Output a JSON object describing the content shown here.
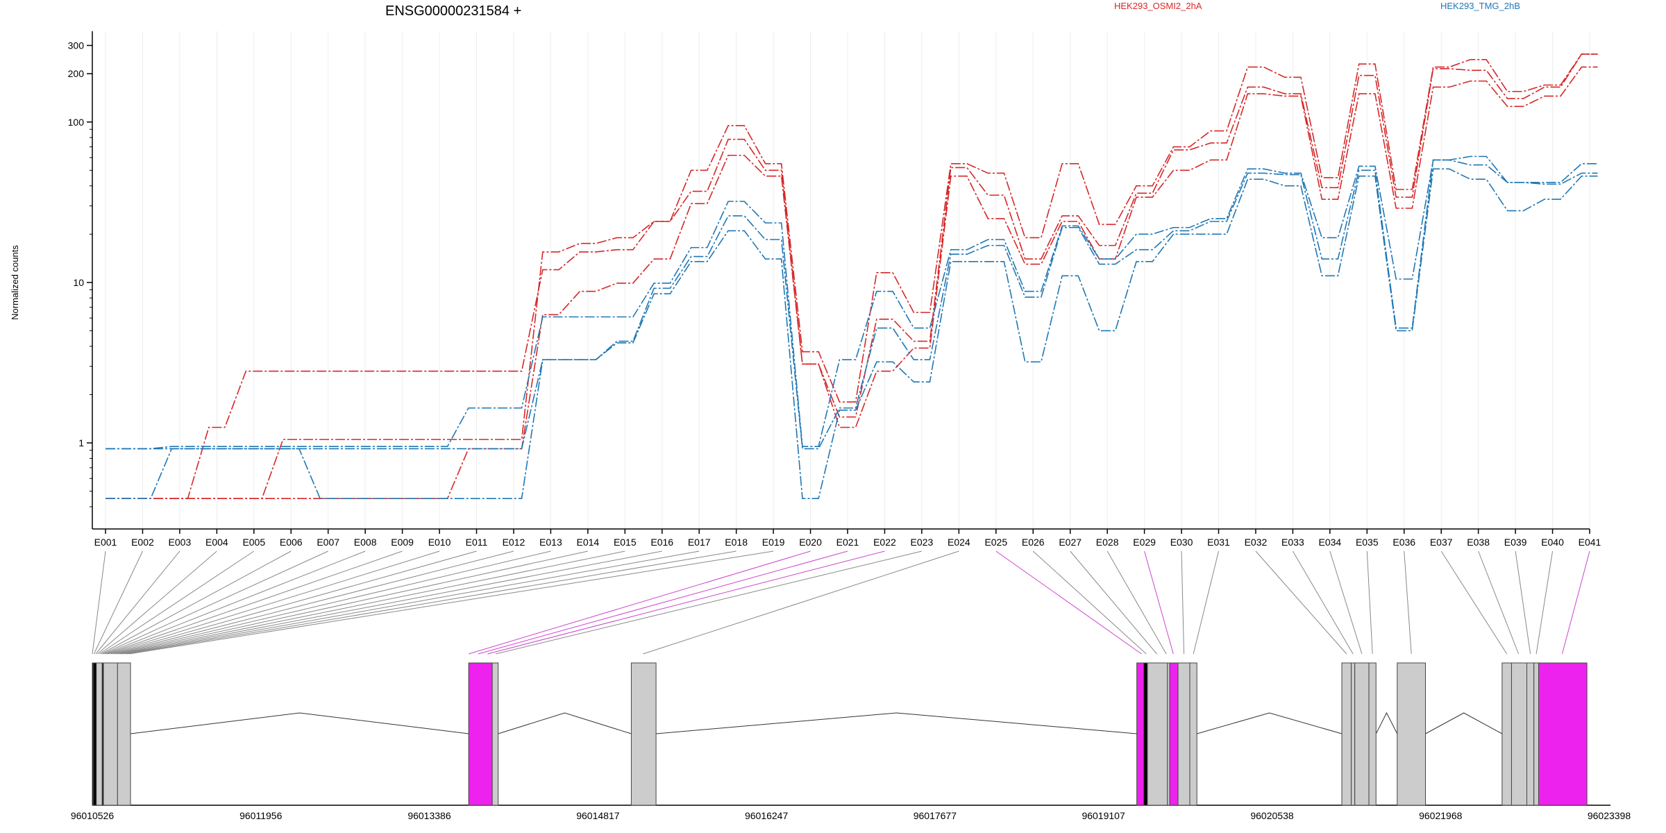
{
  "chart_data": {
    "type": "line",
    "title": "ENSG00000231584 +",
    "ylabel": "Normalized counts",
    "yscale": "log",
    "ylim": [
      0.4,
      350
    ],
    "ytick_labels": [
      "1",
      "10",
      "100",
      "200",
      "300"
    ],
    "ytick_values": [
      1,
      10,
      100,
      200,
      300
    ],
    "x": [
      "E001",
      "E002",
      "E003",
      "E004",
      "E005",
      "E006",
      "E007",
      "E008",
      "E009",
      "E010",
      "E011",
      "E012",
      "E013",
      "E014",
      "E015",
      "E016",
      "E017",
      "E018",
      "E019",
      "E020",
      "E021",
      "E022",
      "E023",
      "E024",
      "E025",
      "E026",
      "E027",
      "E028",
      "E029",
      "E030",
      "E031",
      "E032",
      "E033",
      "E034",
      "E035",
      "E036",
      "E037",
      "E038",
      "E039",
      "E040",
      "E041"
    ],
    "conditions": [
      {
        "name": "HEK293_OSMI2_2hA",
        "color": "#d62728"
      },
      {
        "name": "HEK293_TMG_2hB",
        "color": "#1f77b4"
      }
    ],
    "series": [
      {
        "condition": 0,
        "values": [
          0.45,
          0.45,
          0.45,
          0.45,
          0.45,
          1.05,
          1.05,
          1.05,
          1.05,
          1.05,
          1.05,
          1.05,
          15.5,
          17.5,
          19,
          24,
          50,
          95,
          55,
          3.7,
          1.8,
          11.5,
          6.5,
          55,
          48,
          19,
          55,
          23,
          40,
          70,
          88,
          220,
          190,
          45,
          230,
          38,
          220,
          245,
          155,
          170,
          265
        ]
      },
      {
        "condition": 0,
        "values": [
          0.45,
          0.45,
          0.45,
          1.25,
          2.8,
          2.8,
          2.8,
          2.8,
          2.8,
          2.8,
          2.8,
          2.8,
          12,
          15.5,
          16,
          24,
          37,
          78,
          50,
          3.1,
          1.45,
          5.9,
          4.3,
          52,
          35,
          14,
          26,
          17,
          36,
          67,
          74,
          165,
          150,
          39,
          195,
          34,
          215,
          210,
          140,
          165,
          265
        ]
      },
      {
        "condition": 0,
        "values": [
          0.45,
          0.45,
          0.45,
          0.45,
          0.45,
          0.45,
          0.45,
          0.45,
          0.45,
          0.45,
          0.92,
          0.92,
          6.3,
          8.8,
          9.9,
          14,
          31,
          62,
          46,
          3.1,
          1.25,
          2.8,
          3.9,
          46,
          25,
          13,
          24,
          14,
          34,
          50,
          58,
          150,
          145,
          33,
          150,
          29,
          165,
          180,
          125,
          145,
          220
        ]
      },
      {
        "condition": 1,
        "values": [
          0.92,
          0.92,
          0.95,
          0.95,
          0.95,
          0.95,
          0.95,
          0.95,
          0.95,
          0.95,
          1.65,
          1.65,
          6.1,
          6.1,
          6.1,
          9.9,
          16.5,
          32,
          23.5,
          0.95,
          3.3,
          8.8,
          5.2,
          16,
          18.5,
          8.8,
          22.5,
          14,
          20,
          22,
          25,
          51,
          48,
          19,
          53,
          10.5,
          58,
          61,
          42,
          42,
          55
        ]
      },
      {
        "condition": 1,
        "values": [
          0.92,
          0.92,
          0.92,
          0.92,
          0.92,
          0.92,
          0.92,
          0.92,
          0.92,
          0.92,
          0.92,
          0.92,
          3.3,
          3.3,
          4.3,
          9.2,
          14.5,
          26,
          18.5,
          0.92,
          1.65,
          5.2,
          3.3,
          15,
          17,
          8.1,
          22,
          13,
          16,
          21,
          24,
          48,
          47,
          14,
          50,
          5.2,
          58,
          54,
          42,
          41,
          48
        ]
      },
      {
        "condition": 1,
        "values": [
          0.45,
          0.45,
          0.92,
          0.92,
          0.92,
          0.92,
          0.45,
          0.45,
          0.45,
          0.45,
          0.45,
          0.45,
          3.3,
          3.3,
          4.2,
          8.5,
          13.5,
          21,
          14,
          0.45,
          1.6,
          3.2,
          2.4,
          13.5,
          13.5,
          3.2,
          11,
          5,
          13.5,
          20,
          20,
          44,
          40,
          11,
          46,
          5,
          51,
          44,
          28,
          33,
          46
        ]
      }
    ],
    "gene_model": {
      "coordinate_labels": [
        "96010526",
        "96011956",
        "96013386",
        "96014817",
        "96016247",
        "96017677",
        "96019107",
        "96020538",
        "96021968",
        "96023398"
      ],
      "coordinate_range": [
        96010526,
        96023398
      ],
      "exons": [
        {
          "start": 96010526,
          "end": 96010530,
          "color": "#000000"
        },
        {
          "start": 96010535,
          "end": 96010560,
          "color": "#000000"
        },
        {
          "start": 96010560,
          "end": 96010610,
          "color": "#cccccc"
        },
        {
          "start": 96010610,
          "end": 96010620,
          "color": "#000000"
        },
        {
          "start": 96010620,
          "end": 96010740,
          "color": "#cccccc"
        },
        {
          "start": 96010740,
          "end": 96010850,
          "color": "#cccccc"
        },
        {
          "start": 96013720,
          "end": 96013920,
          "color": "#ee22ee"
        },
        {
          "start": 96013920,
          "end": 96013970,
          "color": "#cccccc"
        },
        {
          "start": 96015100,
          "end": 96015310,
          "color": "#cccccc"
        },
        {
          "start": 96019390,
          "end": 96019450,
          "color": "#ee22ee"
        },
        {
          "start": 96019450,
          "end": 96019480,
          "color": "#000000"
        },
        {
          "start": 96019480,
          "end": 96019650,
          "color": "#cccccc"
        },
        {
          "start": 96019650,
          "end": 96019670,
          "color": "#cccccc"
        },
        {
          "start": 96019670,
          "end": 96019740,
          "color": "#ee22ee"
        },
        {
          "start": 96019740,
          "end": 96019840,
          "color": "#cccccc"
        },
        {
          "start": 96019840,
          "end": 96019900,
          "color": "#cccccc"
        },
        {
          "start": 96021130,
          "end": 96021210,
          "color": "#cccccc"
        },
        {
          "start": 96021210,
          "end": 96021240,
          "color": "#cccccc"
        },
        {
          "start": 96021240,
          "end": 96021360,
          "color": "#cccccc"
        },
        {
          "start": 96021360,
          "end": 96021420,
          "color": "#cccccc"
        },
        {
          "start": 96021600,
          "end": 96021840,
          "color": "#cccccc"
        },
        {
          "start": 96022490,
          "end": 96022570,
          "color": "#cccccc"
        },
        {
          "start": 96022570,
          "end": 96022700,
          "color": "#cccccc"
        },
        {
          "start": 96022700,
          "end": 96022760,
          "color": "#cccccc"
        },
        {
          "start": 96022760,
          "end": 96022800,
          "color": "#cccccc"
        },
        {
          "start": 96022800,
          "end": 96023210,
          "color": "#ee22ee"
        }
      ],
      "introns": [
        [
          96010850,
          96013720
        ],
        [
          96013970,
          96015100
        ],
        [
          96015310,
          96019390
        ],
        [
          96019900,
          96021130
        ],
        [
          96021420,
          96021600
        ],
        [
          96021840,
          96022490
        ]
      ],
      "exon_links": [
        {
          "exon": "E001",
          "pos": 96010526,
          "color": "#888888"
        },
        {
          "exon": "E002",
          "pos": 96010540,
          "color": "#888888"
        },
        {
          "exon": "E003",
          "pos": 96010555,
          "color": "#888888"
        },
        {
          "exon": "E004",
          "pos": 96010570,
          "color": "#888888"
        },
        {
          "exon": "E005",
          "pos": 96010585,
          "color": "#888888"
        },
        {
          "exon": "E006",
          "pos": 96010600,
          "color": "#888888"
        },
        {
          "exon": "E007",
          "pos": 96010615,
          "color": "#888888"
        },
        {
          "exon": "E008",
          "pos": 96010630,
          "color": "#888888"
        },
        {
          "exon": "E009",
          "pos": 96010645,
          "color": "#888888"
        },
        {
          "exon": "E010",
          "pos": 96010660,
          "color": "#888888"
        },
        {
          "exon": "E011",
          "pos": 96010680,
          "color": "#888888"
        },
        {
          "exon": "E012",
          "pos": 96010700,
          "color": "#888888"
        },
        {
          "exon": "E013",
          "pos": 96010720,
          "color": "#888888"
        },
        {
          "exon": "E014",
          "pos": 96010740,
          "color": "#888888"
        },
        {
          "exon": "E015",
          "pos": 96010760,
          "color": "#888888"
        },
        {
          "exon": "E016",
          "pos": 96010780,
          "color": "#888888"
        },
        {
          "exon": "E017",
          "pos": 96010800,
          "color": "#888888"
        },
        {
          "exon": "E018",
          "pos": 96010820,
          "color": "#888888"
        },
        {
          "exon": "E019",
          "pos": 96010840,
          "color": "#888888"
        },
        {
          "exon": "E020",
          "pos": 96013720,
          "color": "#cc44cc"
        },
        {
          "exon": "E021",
          "pos": 96013800,
          "color": "#cc44cc"
        },
        {
          "exon": "E022",
          "pos": 96013880,
          "color": "#cc44cc"
        },
        {
          "exon": "E023",
          "pos": 96013950,
          "color": "#888888"
        },
        {
          "exon": "E024",
          "pos": 96015200,
          "color": "#888888"
        },
        {
          "exon": "E025",
          "pos": 96019430,
          "color": "#cc44cc"
        },
        {
          "exon": "E026",
          "pos": 96019470,
          "color": "#888888"
        },
        {
          "exon": "E027",
          "pos": 96019560,
          "color": "#888888"
        },
        {
          "exon": "E028",
          "pos": 96019640,
          "color": "#888888"
        },
        {
          "exon": "E029",
          "pos": 96019700,
          "color": "#cc44cc"
        },
        {
          "exon": "E030",
          "pos": 96019790,
          "color": "#888888"
        },
        {
          "exon": "E031",
          "pos": 96019870,
          "color": "#888888"
        },
        {
          "exon": "E032",
          "pos": 96021170,
          "color": "#888888"
        },
        {
          "exon": "E033",
          "pos": 96021225,
          "color": "#888888"
        },
        {
          "exon": "E034",
          "pos": 96021300,
          "color": "#888888"
        },
        {
          "exon": "E035",
          "pos": 96021390,
          "color": "#888888"
        },
        {
          "exon": "E036",
          "pos": 96021720,
          "color": "#888888"
        },
        {
          "exon": "E037",
          "pos": 96022530,
          "color": "#888888"
        },
        {
          "exon": "E038",
          "pos": 96022630,
          "color": "#888888"
        },
        {
          "exon": "E039",
          "pos": 96022730,
          "color": "#888888"
        },
        {
          "exon": "E040",
          "pos": 96022780,
          "color": "#888888"
        },
        {
          "exon": "E041",
          "pos": 96023000,
          "color": "#cc44cc"
        }
      ]
    }
  }
}
